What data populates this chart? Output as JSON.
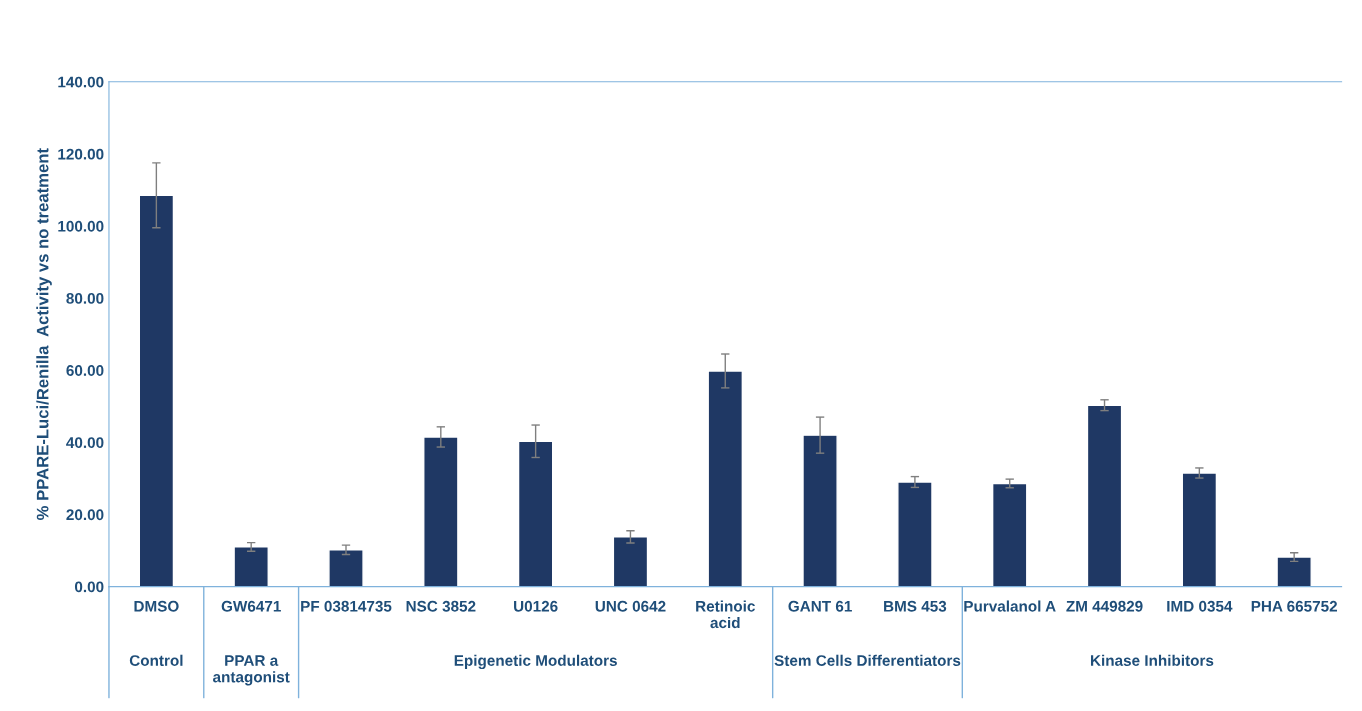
{
  "chart_data": {
    "type": "bar",
    "ylabel": "% PPARE-Luci/Renilla  Activity vs no treatment",
    "categories": [
      "DMSO",
      "GW6471",
      "PF 03814735",
      "NSC 3852",
      "U0126",
      "UNC 0642",
      "Retinoic\nacid",
      "GANT 61",
      "BMS 453",
      "Purvalanol A",
      "ZM 449829",
      "IMD 0354",
      "PHA 665752"
    ],
    "values": [
      108.5,
      11.0,
      10.2,
      41.5,
      40.3,
      13.8,
      59.8,
      42.0,
      29.0,
      28.6,
      50.3,
      31.5,
      8.2
    ],
    "errors": [
      9.0,
      1.2,
      1.3,
      2.8,
      4.5,
      1.7,
      4.7,
      5.0,
      1.5,
      1.2,
      1.5,
      1.4,
      1.2
    ],
    "color": "#1f3864",
    "ylim": [
      0,
      140
    ],
    "yticks": [
      {
        "value": 0,
        "label": "0.00"
      },
      {
        "value": 20,
        "label": "20.00"
      },
      {
        "value": 40,
        "label": "40.00"
      },
      {
        "value": 60,
        "label": "60.00"
      },
      {
        "value": 80,
        "label": "80.00"
      },
      {
        "value": 100,
        "label": "100.00"
      },
      {
        "value": 120,
        "label": "120.00"
      },
      {
        "value": 140,
        "label": "140.00"
      }
    ],
    "grid": false,
    "annotations": [
      "Control",
      "PPAR a\nantagonist",
      "Epigenetic Modulators",
      "Stem Cells Differentiators",
      "Kinase Inhibitors"
    ]
  }
}
